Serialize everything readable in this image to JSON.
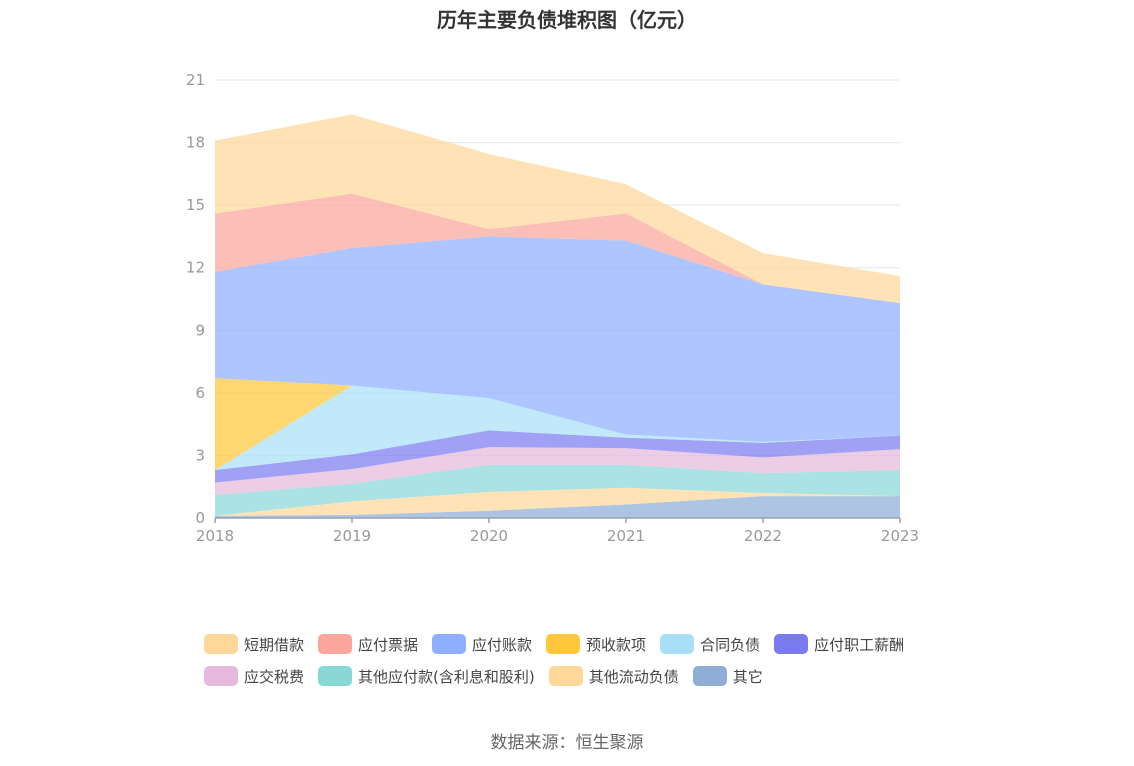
{
  "chart_data": {
    "type": "area",
    "stacked": true,
    "title": "历年主要负债堆积图（亿元）",
    "x": [
      "2018",
      "2019",
      "2020",
      "2021",
      "2022",
      "2023"
    ],
    "ylim": [
      0,
      21
    ],
    "yticks": [
      0,
      3,
      6,
      9,
      12,
      15,
      18,
      21
    ],
    "grid": true,
    "legend_position": "bottom",
    "series": [
      {
        "name": "其它",
        "color": "#8eaed8",
        "values": [
          0.1,
          0.15,
          0.35,
          0.65,
          1.05,
          1.05
        ]
      },
      {
        "name": "其他流动负债",
        "color": "#ffd89a",
        "values": [
          0.0,
          0.65,
          0.9,
          0.8,
          0.15,
          0.0
        ]
      },
      {
        "name": "其他应付款(含利息和股利)",
        "color": "#8ad7d8",
        "values": [
          1.0,
          0.85,
          1.3,
          1.1,
          0.95,
          1.25
        ]
      },
      {
        "name": "应交税费",
        "color": "#e6b9dc",
        "values": [
          0.6,
          0.7,
          0.85,
          0.8,
          0.75,
          1.0
        ]
      },
      {
        "name": "应付职工薪酬",
        "color": "#7b7bf0",
        "values": [
          0.6,
          0.7,
          0.8,
          0.5,
          0.7,
          0.65
        ]
      },
      {
        "name": "合同负债",
        "color": "#a9e0f8",
        "values": [
          0.0,
          3.3,
          1.55,
          0.15,
          0.05,
          0.0
        ]
      },
      {
        "name": "预收款项",
        "color": "#ffc73a",
        "values": [
          4.4,
          0.0,
          0.0,
          0.0,
          0.0,
          0.0
        ]
      },
      {
        "name": "应付账款",
        "color": "#8faeff",
        "values": [
          5.1,
          6.6,
          7.75,
          9.3,
          7.55,
          6.35
        ]
      },
      {
        "name": "应付票据",
        "color": "#fba69b",
        "values": [
          2.8,
          2.6,
          0.35,
          1.3,
          0.0,
          0.0
        ]
      },
      {
        "name": "短期借款",
        "color": "#ffd79a",
        "values": [
          3.5,
          3.8,
          3.6,
          1.4,
          1.5,
          1.3
        ]
      }
    ],
    "legend_order": [
      "短期借款",
      "应付票据",
      "应付账款",
      "预收款项",
      "合同负债",
      "应付职工薪酬",
      "应交税费",
      "其他应付款(含利息和股利)",
      "其他流动负债",
      "其它"
    ]
  },
  "source": "数据来源：恒生聚源"
}
